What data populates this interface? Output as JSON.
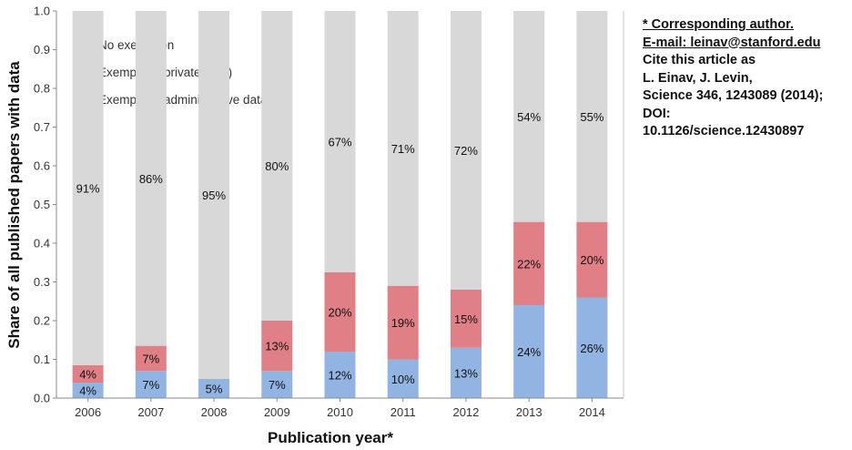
{
  "chart_data": {
    "type": "bar",
    "stacked": true,
    "categories": [
      "2006",
      "2007",
      "2008",
      "2009",
      "2010",
      "2011",
      "2012",
      "2013",
      "2014"
    ],
    "series": [
      {
        "name": "Exemption (administrative data)",
        "color": "#92b4e3",
        "values": [
          0.04,
          0.07,
          0.05,
          0.07,
          0.12,
          0.1,
          0.13,
          0.24,
          0.26
        ],
        "labels": [
          "4%",
          "7%",
          "5%",
          "7%",
          "12%",
          "10%",
          "13%",
          "24%",
          "26%"
        ]
      },
      {
        "name": "Exemption (private data)",
        "color": "#e07f86",
        "values": [
          0.045,
          0.065,
          0.0,
          0.13,
          0.205,
          0.19,
          0.15,
          0.215,
          0.195
        ],
        "labels": [
          "4%",
          "7%",
          "",
          "13%",
          "20%",
          "19%",
          "15%",
          "22%",
          "20%"
        ]
      },
      {
        "name": "No exemption",
        "color": "#d8d8d8",
        "values": [
          0.915,
          0.865,
          0.95,
          0.8,
          0.675,
          0.71,
          0.72,
          0.545,
          0.545
        ],
        "labels": [
          "91%",
          "86%",
          "95%",
          "80%",
          "67%",
          "71%",
          "72%",
          "54%",
          "55%"
        ]
      }
    ],
    "title": "",
    "xlabel": "Publication year*",
    "ylabel": "Share of all published papers with data",
    "ylim": [
      0,
      1.0
    ],
    "yticks": [
      "0.0",
      "0.1",
      "0.2",
      "0.3",
      "0.4",
      "0.5",
      "0.6",
      "0.7",
      "0.8",
      "0.9",
      "1.0"
    ],
    "grid": false,
    "legend": {
      "placement": "top-left",
      "items": [
        "No exemption",
        "Exemption (private data)",
        "Exemption (administrative data)"
      ]
    }
  },
  "note": {
    "line1": "* Corresponding author.",
    "line2": "E-mail: leinav@stanford.edu",
    "line3": "Cite this article as",
    "line4": "L. Einav, J. Levin,",
    "line5": "Science 346, 1243089 (2014);",
    "line6": "DOI:",
    "line7": "10.1126/science.12430897"
  }
}
